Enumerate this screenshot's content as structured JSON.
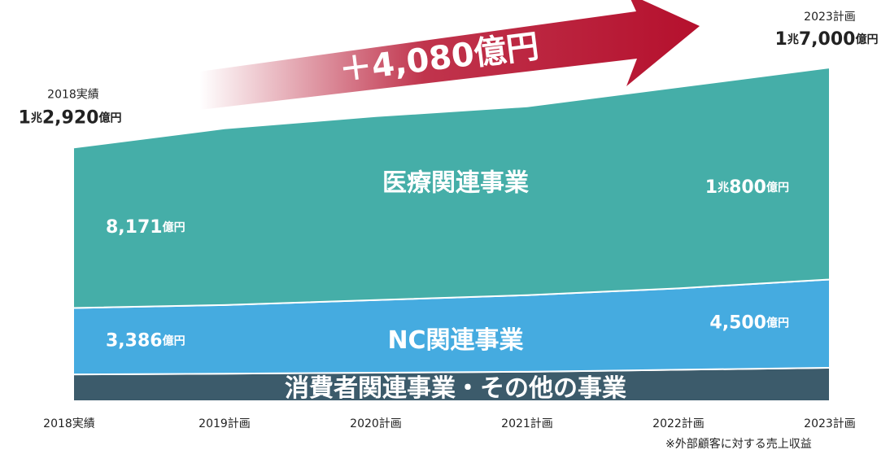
{
  "chart_data": {
    "type": "area",
    "stacked": true,
    "categories": [
      "2018実績",
      "2019計画",
      "2020計画",
      "2021計画",
      "2022計画",
      "2023計画"
    ],
    "series": [
      {
        "name": "消費者関連事業・その他の事業",
        "color": "#3c5b6b",
        "values": [
          1363,
          1400,
          1450,
          1500,
          1600,
          1700
        ]
      },
      {
        "name": "NC関連事業",
        "color": "#45abe0",
        "values": [
          3386,
          3500,
          3700,
          3900,
          4150,
          4500
        ],
        "value_labels": [
          "3,386億円",
          null,
          null,
          null,
          null,
          "4,500億円"
        ]
      },
      {
        "name": "医療関連事業",
        "color": "#45aea8",
        "values": [
          8171,
          9000,
          9370,
          9620,
          10260,
          10800
        ],
        "value_labels": [
          "8,171億円",
          null,
          null,
          null,
          null,
          "1兆800億円"
        ]
      }
    ],
    "totals": [
      12920,
      null,
      null,
      null,
      null,
      17000
    ],
    "total_labels": [
      "1兆2,920億円",
      null,
      null,
      null,
      null,
      "1兆7,000億円"
    ],
    "annotation": {
      "value": 4080,
      "label": "＋4,080億円"
    },
    "footnote": "※外部顧客に対する売上収益"
  }
}
